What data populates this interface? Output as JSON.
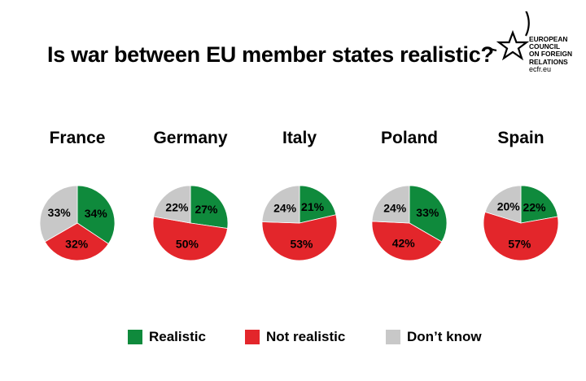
{
  "chart_data": {
    "type": "pie",
    "title": "Is war between EU member states realistic?",
    "categories": [
      "Realistic",
      "Not realistic",
      "Don’t know"
    ],
    "colors": {
      "Realistic": "#0f8a3c",
      "Not realistic": "#e3262b",
      "Don’t know": "#c8c8c8"
    },
    "pies": [
      {
        "name": "France",
        "values": [
          34,
          32,
          33
        ],
        "labels": [
          "34%",
          "32%",
          "33%"
        ]
      },
      {
        "name": "Germany",
        "values": [
          27,
          50,
          22
        ],
        "labels": [
          "27%",
          "50%",
          "22%"
        ]
      },
      {
        "name": "Italy",
        "values": [
          21,
          53,
          24
        ],
        "labels": [
          "21%",
          "53%",
          "24%"
        ]
      },
      {
        "name": "Poland",
        "values": [
          33,
          42,
          24
        ],
        "labels": [
          "33%",
          "42%",
          "24%"
        ]
      },
      {
        "name": "Spain",
        "values": [
          22,
          57,
          20
        ],
        "labels": [
          "22%",
          "57%",
          "20%"
        ]
      }
    ],
    "legend": [
      "Realistic",
      "Not realistic",
      "Don’t know"
    ],
    "legend_placement": "bottom"
  },
  "logo": {
    "lines": [
      "EUROPEAN",
      "COUNCIL",
      "ON FOREIGN",
      "RELATIONS"
    ],
    "url": "ecfr.eu",
    "icon": "star-circle-icon"
  }
}
